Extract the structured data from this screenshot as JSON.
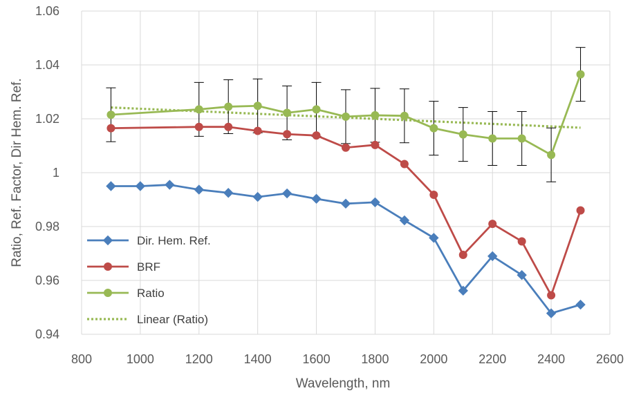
{
  "chart_data": {
    "type": "line",
    "title": "",
    "xlabel": "Wavelength, nm",
    "ylabel": "Ratio, Ref. Factor, Dir Hem. Ref.",
    "xlim": [
      800,
      2600
    ],
    "ylim": [
      0.94,
      1.06
    ],
    "x_ticks": [
      800,
      1000,
      1200,
      1400,
      1600,
      1800,
      2000,
      2200,
      2400,
      2600
    ],
    "y_ticks": [
      0.94,
      0.96,
      0.98,
      1,
      1.02,
      1.04,
      1.06
    ],
    "x_tick_labels": [
      "800",
      "1000",
      "1200",
      "1400",
      "1600",
      "1800",
      "2000",
      "2200",
      "2400",
      "2600"
    ],
    "y_tick_labels": [
      "0.94",
      "0.96",
      "0.98",
      "1",
      "1.02",
      "1.04",
      "1.06"
    ],
    "grid": true,
    "legend_position": "bottom-left",
    "series": [
      {
        "name": "Dir. Hem. Ref.",
        "color": "#4a7ebb",
        "marker": "diamond",
        "x": [
          900,
          1000,
          1100,
          1200,
          1300,
          1400,
          1500,
          1600,
          1700,
          1800,
          1900,
          2000,
          2100,
          2200,
          2300,
          2400,
          2500
        ],
        "y": [
          0.995,
          0.995,
          0.9955,
          0.9937,
          0.9925,
          0.991,
          0.9923,
          0.9903,
          0.9885,
          0.989,
          0.9823,
          0.9758,
          0.9562,
          0.969,
          0.962,
          0.9478,
          0.951
        ]
      },
      {
        "name": "BRF",
        "color": "#be4b48",
        "marker": "circle",
        "x": [
          900,
          1200,
          1300,
          1400,
          1500,
          1600,
          1700,
          1800,
          1900,
          2000,
          2100,
          2200,
          2300,
          2400,
          2500
        ],
        "y": [
          1.0165,
          1.017,
          1.017,
          1.0155,
          1.0143,
          1.0138,
          1.0093,
          1.0103,
          1.0032,
          0.9918,
          0.9695,
          0.981,
          0.9745,
          0.9545,
          0.986
        ]
      },
      {
        "name": "Ratio",
        "color": "#98b954",
        "marker": "circle",
        "x": [
          900,
          1200,
          1300,
          1400,
          1500,
          1600,
          1700,
          1800,
          1900,
          2000,
          2100,
          2200,
          2300,
          2400,
          2500
        ],
        "y": [
          1.0215,
          1.0235,
          1.0245,
          1.0248,
          1.0222,
          1.0235,
          1.0208,
          1.0213,
          1.0211,
          1.0165,
          1.0142,
          1.0127,
          1.0127,
          1.0066,
          1.0365
        ],
        "error": 0.01
      },
      {
        "name": "Linear (Ratio)",
        "color": "#98b954",
        "style": "dotted",
        "x": [
          900,
          2500
        ],
        "y": [
          1.0242,
          1.0167
        ]
      }
    ]
  }
}
